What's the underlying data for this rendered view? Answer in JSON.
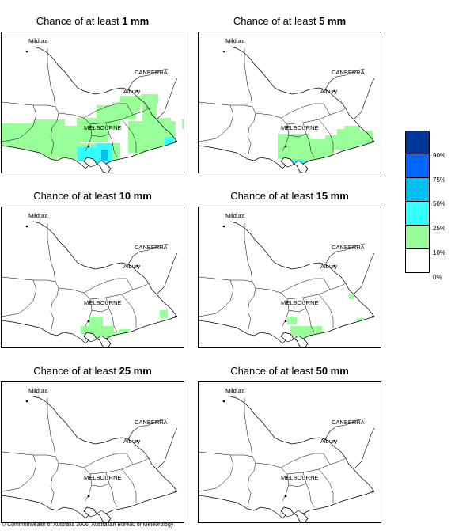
{
  "panels": [
    {
      "title_prefix": "Chance of at least ",
      "amount": "1 mm",
      "level": 0
    },
    {
      "title_prefix": "Chance of at least ",
      "amount": "5 mm",
      "level": 1
    },
    {
      "title_prefix": "Chance of at least ",
      "amount": "10 mm",
      "level": 2
    },
    {
      "title_prefix": "Chance of at least ",
      "amount": "15 mm",
      "level": 3
    },
    {
      "title_prefix": "Chance of at least ",
      "amount": "25 mm",
      "level": 4
    },
    {
      "title_prefix": "Chance of at least ",
      "amount": "50 mm",
      "level": 5
    }
  ],
  "places": {
    "mildura": "Mildura",
    "canberra": "CANBERRA",
    "albury": "Albury",
    "melbourne": "MELBOURNE"
  },
  "legend": {
    "colors": [
      "#00379a",
      "#0066ff",
      "#00c0f0",
      "#33ffff",
      "#99ff99",
      "#ffffff"
    ],
    "labels": [
      "90%",
      "75%",
      "50%",
      "25%",
      "10%",
      "0%"
    ]
  },
  "copyright": "© Commonwealth of Australia 2006, Australian Bureau of Meteorology"
}
